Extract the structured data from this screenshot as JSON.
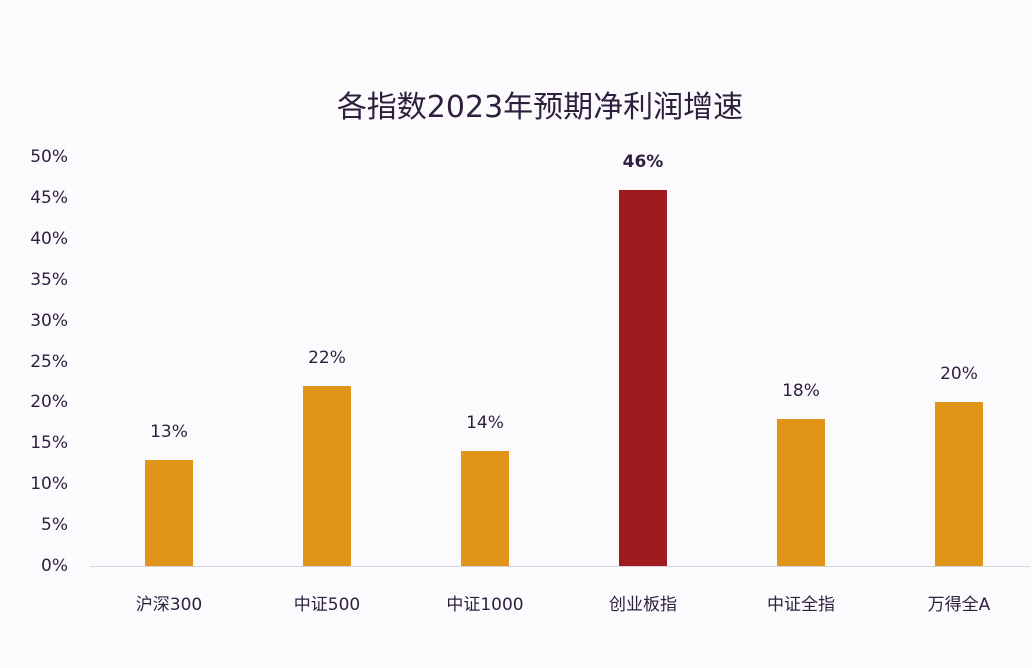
{
  "chart_data": {
    "type": "bar",
    "title": "各指数2023年预期净利润增速",
    "xlabel": "",
    "ylabel": "",
    "categories": [
      "沪深300",
      "中证500",
      "中证1000",
      "创业板指",
      "中证全指",
      "万得全A"
    ],
    "values": [
      13,
      22,
      14,
      46,
      18,
      20
    ],
    "value_labels": [
      "13%",
      "22%",
      "14%",
      "46%",
      "18%",
      "20%"
    ],
    "bar_colors": [
      "#e09418",
      "#e09418",
      "#e09418",
      "#9e1b1e",
      "#e09418",
      "#e09418"
    ],
    "highlight_index": 3,
    "ylim": [
      0,
      50
    ],
    "yticks": [
      "0%",
      "5%",
      "10%",
      "15%",
      "20%",
      "25%",
      "30%",
      "35%",
      "40%",
      "45%",
      "50%"
    ],
    "grid": false,
    "legend": null
  },
  "colors": {
    "default_bar": "#e09418",
    "highlight_bar": "#9e1b1e",
    "text": "#2e1f3d",
    "axis": "#d4d2dc",
    "background": "#fbfbfd"
  }
}
